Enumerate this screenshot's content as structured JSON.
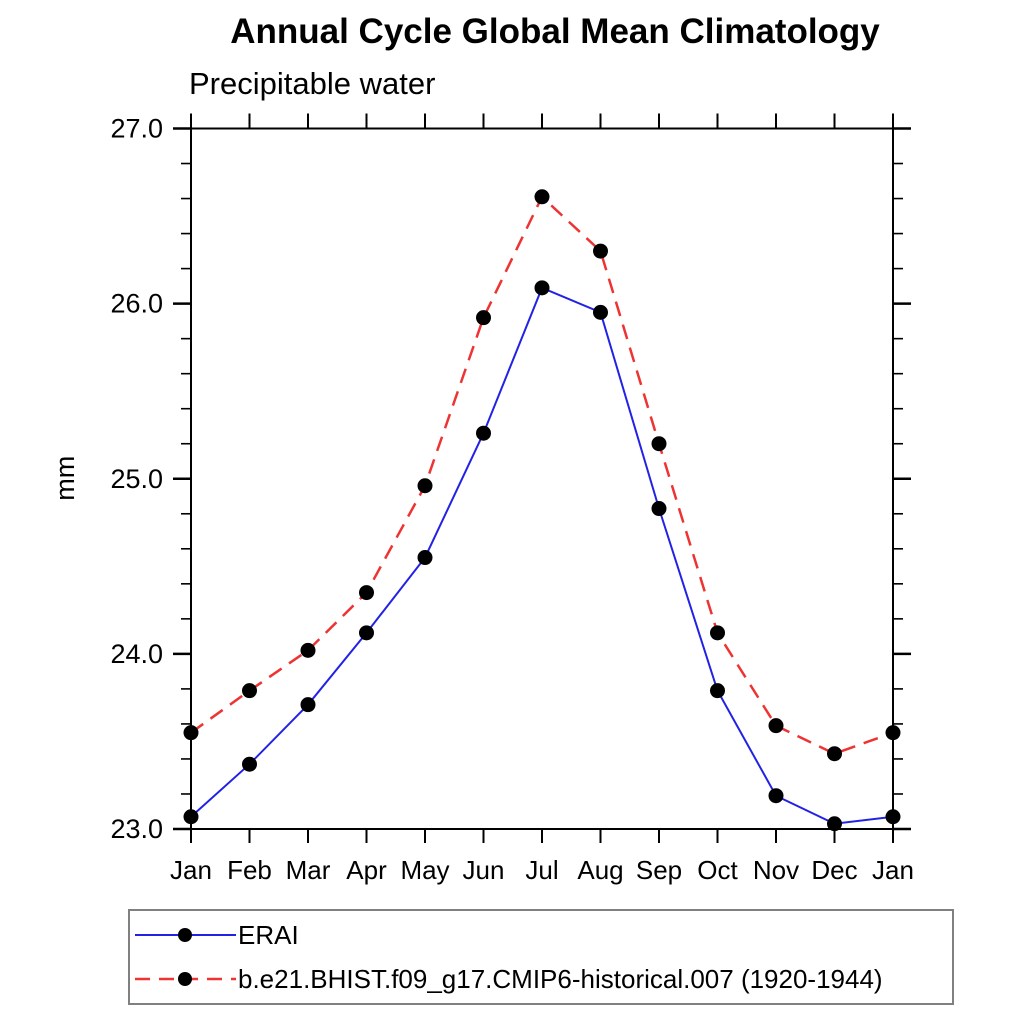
{
  "chart_data": {
    "type": "line",
    "title": "Annual Cycle Global Mean Climatology",
    "subtitle": "Precipitable water",
    "ylabel": "mm",
    "x_categories": [
      "Jan",
      "Feb",
      "Mar",
      "Apr",
      "May",
      "Jun",
      "Jul",
      "Aug",
      "Sep",
      "Oct",
      "Nov",
      "Dec",
      "Jan"
    ],
    "ylim": [
      23.0,
      27.0
    ],
    "ytick_values": [
      23,
      24,
      25,
      26,
      27
    ],
    "ytick_labels": [
      "23.0",
      "24.0",
      "25.0",
      "26.0",
      "27.0"
    ],
    "y_minor_step": 0.2,
    "grid": false,
    "axis_color": "#000000",
    "marker_color": "#000000",
    "legend_position": "bottom-left",
    "series": [
      {
        "name": "ERAI",
        "color": "#2222e6",
        "style": "solid",
        "marker": "circle",
        "values": [
          23.07,
          23.37,
          23.71,
          24.12,
          24.55,
          25.26,
          26.09,
          25.95,
          24.83,
          23.79,
          23.19,
          23.03,
          23.07
        ]
      },
      {
        "name": "b.e21.BHIST.f09_g17.CMIP6-historical.007 (1920-1944)",
        "color": "#ee3333",
        "style": "dashed",
        "marker": "circle",
        "values": [
          23.55,
          23.79,
          24.02,
          24.35,
          24.96,
          25.92,
          26.61,
          26.3,
          25.2,
          24.12,
          23.59,
          23.43,
          23.55
        ]
      }
    ]
  }
}
